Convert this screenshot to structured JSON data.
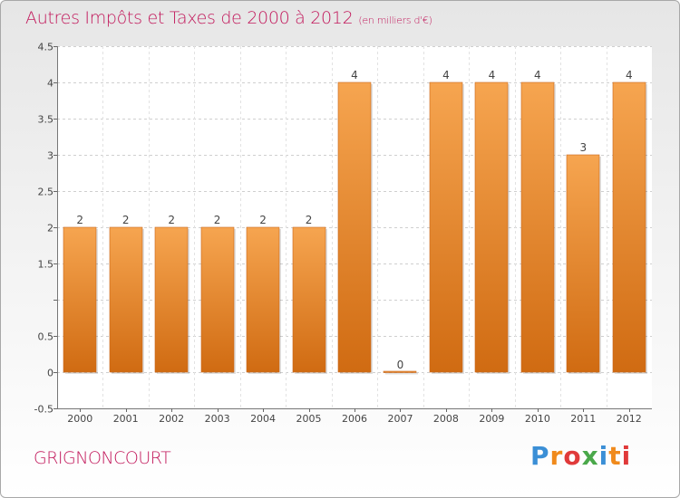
{
  "header": {
    "title": "Autres Impôts et Taxes de 2000 à 2012",
    "subtitle": "(en milliers d'€)"
  },
  "footer": {
    "commune": "GRIGNONCOURT",
    "logo_text": "Proxiti",
    "logo_letters": [
      {
        "ch": "P",
        "color": "#3b8fd6"
      },
      {
        "ch": "r",
        "color": "#f08a1c"
      },
      {
        "ch": "o",
        "color": "#e03a3a"
      },
      {
        "ch": "x",
        "color": "#4aa84a"
      },
      {
        "ch": "i",
        "color": "#3b8fd6"
      },
      {
        "ch": "t",
        "color": "#f08a1c"
      },
      {
        "ch": "i",
        "color": "#e03a3a"
      }
    ]
  },
  "colors": {
    "accent": "#c2185b",
    "bar_light": "#f6a550",
    "bar_dark": "#d06b12"
  },
  "chart_data": {
    "type": "bar",
    "title": "Autres Impôts et Taxes de 2000 à 2012",
    "subtitle": "(en milliers d'€)",
    "categories": [
      "2000",
      "2001",
      "2002",
      "2003",
      "2004",
      "2005",
      "2006",
      "2007",
      "2008",
      "2009",
      "2010",
      "2011",
      "2012"
    ],
    "values": [
      2,
      2,
      2,
      2,
      2,
      2,
      4,
      0,
      4,
      4,
      4,
      3,
      4
    ],
    "value_labels": [
      "2",
      "2",
      "2",
      "2",
      "2",
      "2",
      "4",
      "0",
      "4",
      "4",
      "4",
      "3",
      "4"
    ],
    "ylim": [
      -0.5,
      4.5
    ],
    "yticks": [
      -0.5,
      0,
      0.5,
      1,
      1.5,
      2,
      2.5,
      3,
      3.5,
      4,
      4.5
    ],
    "ytick_labels": [
      "-0.5",
      "0",
      "0.5",
      "",
      "1.5",
      "2",
      "2.5",
      "3",
      "3.5",
      "4",
      "4.5"
    ],
    "grid": true,
    "xlabel": "",
    "ylabel": ""
  }
}
